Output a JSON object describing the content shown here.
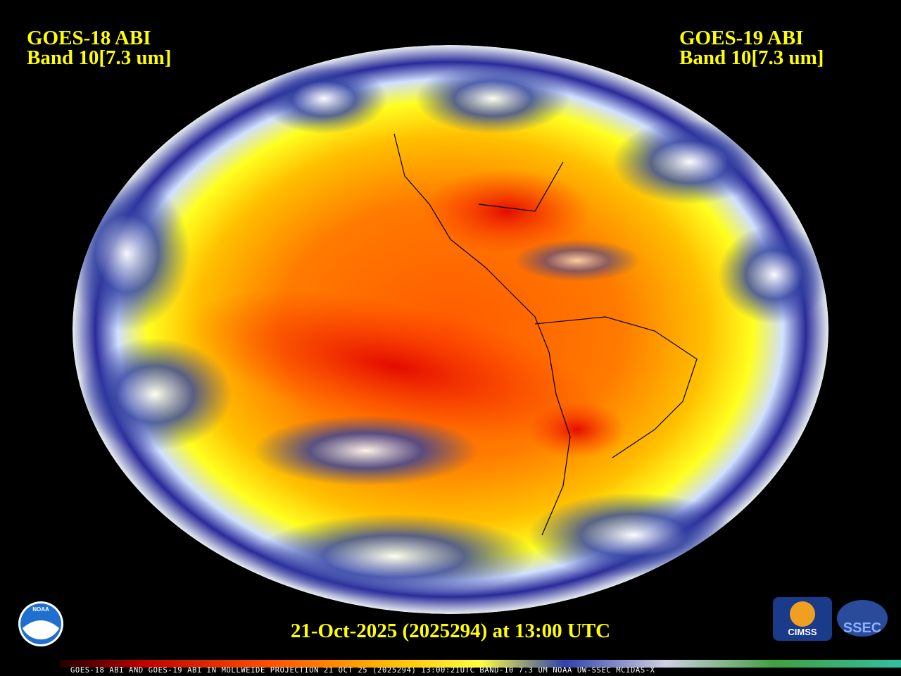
{
  "labels": {
    "left": {
      "satellite": "GOES-18 ABI",
      "band": "Band 10[7.3 um]"
    },
    "right": {
      "satellite": "GOES-19 ABI",
      "band": "Band 10[7.3 um]"
    }
  },
  "timestamp": "21-Oct-2025 (2025294) at 13:00 UTC",
  "footer": "GOES-18 ABI AND GOES-19 ABI IN MOLLWEIDE PROJECTION 21 OCT 25 (2025294) 13:00:21UTC BAND-10 7.3 UM NOAA UW-SSEC MCIDAS-X",
  "logos": {
    "noaa": "NOAA",
    "cimss": "CIMSS",
    "ssec": "SSEC"
  }
}
